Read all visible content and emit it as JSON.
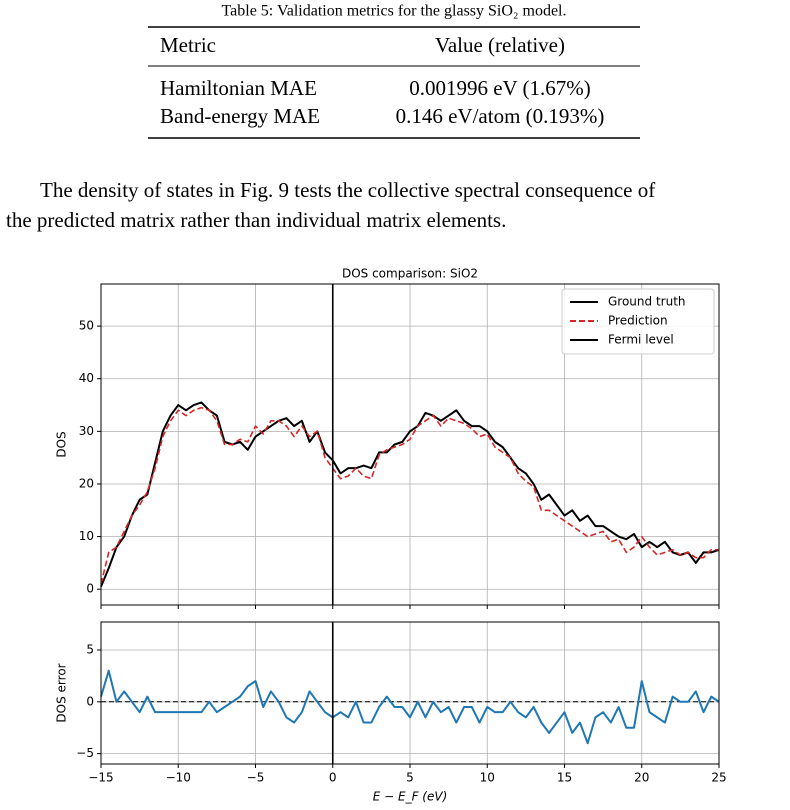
{
  "table": {
    "caption": "Table 5: Validation metrics for the glassy SiO₂ model.",
    "header": [
      "Metric",
      "Value (relative)"
    ],
    "rows": [
      [
        "Hamiltonian MAE",
        "0.001996 eV (1.67%)"
      ],
      [
        "Band-energy MAE",
        "0.146 eV/atom (0.193%)"
      ]
    ]
  },
  "paragraph": {
    "lines": [
      "The density of states in Fig. 9 tests the collective spectral consequence of",
      "the predicted matrix rather than individual matrix elements."
    ]
  },
  "chart_data": [
    {
      "type": "line",
      "title": "DOS comparison: SiO2",
      "ylabel": "DOS",
      "x": [
        -15,
        -14.5,
        -14,
        -13.5,
        -13,
        -12.5,
        -12,
        -11.5,
        -11,
        -10.5,
        -10,
        -9.5,
        -9,
        -8.5,
        -8,
        -7.5,
        -7,
        -6.5,
        -6,
        -5.5,
        -5,
        -4.5,
        -4,
        -3.5,
        -3,
        -2.5,
        -2,
        -1.5,
        -1,
        -0.5,
        0,
        0.5,
        1,
        1.5,
        2,
        2.5,
        3,
        3.5,
        4,
        4.5,
        5,
        5.5,
        6,
        6.5,
        7,
        7.5,
        8,
        8.5,
        9,
        9.5,
        10,
        10.5,
        11,
        11.5,
        12,
        12.5,
        13,
        13.5,
        14,
        14.5,
        15,
        15.5,
        16,
        16.5,
        17,
        17.5,
        18,
        18.5,
        19,
        19.5,
        20,
        20.5,
        21,
        21.5,
        22,
        22.5,
        23,
        23.5,
        24,
        24.5,
        25
      ],
      "series": [
        {
          "name": "Ground truth",
          "color": "#000000",
          "dash": false,
          "values": [
            0.5,
            4,
            8,
            10,
            14,
            17,
            18,
            24,
            30,
            33,
            35,
            34,
            35,
            35.5,
            34,
            33,
            28,
            27.5,
            28,
            26.5,
            29,
            30,
            31,
            32,
            32.5,
            31,
            32,
            28,
            30,
            26,
            24.5,
            22,
            23,
            23,
            23.5,
            23,
            26,
            26,
            27.5,
            28,
            30,
            31,
            33.5,
            33,
            32,
            33,
            34,
            32,
            31,
            31,
            30,
            28,
            27,
            25,
            23,
            22,
            20,
            17,
            18,
            16,
            14,
            15,
            13,
            14,
            12,
            12,
            11,
            10,
            9.5,
            10.5,
            8,
            9,
            8,
            9,
            7,
            6.5,
            7,
            5,
            7,
            7,
            7.5
          ]
        },
        {
          "name": "Prediction",
          "color": "#d62728",
          "dash": true,
          "values": [
            1,
            7,
            8,
            11,
            14,
            16,
            18.5,
            23,
            29,
            32,
            34,
            33,
            34,
            34.5,
            34,
            32,
            27.5,
            27.5,
            28.5,
            28,
            31,
            29.5,
            32,
            32,
            31,
            29,
            31,
            29,
            30,
            25,
            23,
            21,
            21.5,
            23,
            21.5,
            21,
            25.5,
            26.5,
            27,
            27.5,
            28.5,
            31,
            32,
            33,
            31,
            32.5,
            32,
            31.5,
            30.5,
            29,
            29.5,
            27,
            26,
            25,
            22,
            20.5,
            19.5,
            15,
            15,
            14,
            13,
            12,
            11,
            10,
            10.5,
            11,
            9,
            9.5,
            7,
            8,
            10,
            8,
            6.5,
            7,
            7.5,
            6.5,
            7,
            6,
            6,
            7.5,
            7.5
          ]
        }
      ],
      "vline": {
        "name": "Fermi level",
        "color": "#000000",
        "value": 0
      },
      "xlim": [
        -15,
        25
      ],
      "xticks": [
        -15,
        -10,
        -5,
        0,
        5,
        10,
        15,
        20,
        25
      ],
      "xtick_labels": false,
      "ylim": [
        -3,
        58
      ],
      "yticks": [
        0,
        10,
        20,
        30,
        40,
        50
      ],
      "grid": true,
      "legend": "upper-right"
    },
    {
      "type": "line",
      "ylabel": "DOS error",
      "xlabel": "E − E_F (eV)",
      "x": [
        -15,
        -14.5,
        -14,
        -13.5,
        -13,
        -12.5,
        -12,
        -11.5,
        -11,
        -10.5,
        -10,
        -9.5,
        -9,
        -8.5,
        -8,
        -7.5,
        -7,
        -6.5,
        -6,
        -5.5,
        -5,
        -4.5,
        -4,
        -3.5,
        -3,
        -2.5,
        -2,
        -1.5,
        -1,
        -0.5,
        0,
        0.5,
        1,
        1.5,
        2,
        2.5,
        3,
        3.5,
        4,
        4.5,
        5,
        5.5,
        6,
        6.5,
        7,
        7.5,
        8,
        8.5,
        9,
        9.5,
        10,
        10.5,
        11,
        11.5,
        12,
        12.5,
        13,
        13.5,
        14,
        14.5,
        15,
        15.5,
        16,
        16.5,
        17,
        17.5,
        18,
        18.5,
        19,
        19.5,
        20,
        20.5,
        21,
        21.5,
        22,
        22.5,
        23,
        23.5,
        24,
        24.5,
        25
      ],
      "series": [
        {
          "color": "#1f77b4",
          "dash": false,
          "values": [
            0.5,
            3,
            0,
            1,
            0,
            -1,
            0.5,
            -1,
            -1,
            -1,
            -1,
            -1,
            -1,
            -1,
            0,
            -1,
            -0.5,
            0,
            0.5,
            1.5,
            2,
            -0.5,
            1,
            0,
            -1.5,
            -2,
            -1,
            1,
            0,
            -1,
            -1.5,
            -1,
            -1.5,
            0,
            -2,
            -2,
            -0.5,
            0.5,
            -0.5,
            -0.5,
            -1.5,
            0,
            -1.5,
            0,
            -1,
            -0.5,
            -2,
            -0.5,
            -0.5,
            -2,
            -0.5,
            -1,
            -1,
            0,
            -1,
            -1.5,
            -0.5,
            -2,
            -3,
            -2,
            -1,
            -3,
            -2,
            -4,
            -1.5,
            -1,
            -2,
            -0.5,
            -2.5,
            -2.5,
            2,
            -1,
            -1.5,
            -2,
            0.5,
            0,
            0,
            1,
            -1,
            0.5,
            0
          ]
        }
      ],
      "vline": {
        "color": "#000000",
        "value": 0
      },
      "hline": {
        "color": "#000000",
        "value": 0
      },
      "xlim": [
        -15,
        25
      ],
      "xticks": [
        {
          "value": -15,
          "label": "−15"
        },
        {
          "value": -10,
          "label": "−10"
        },
        {
          "value": -5,
          "label": "−5"
        },
        0,
        5,
        10,
        15,
        20,
        25
      ],
      "xtick_labels": true,
      "ylim": [
        -6,
        7.7
      ],
      "yticks": [
        {
          "value": -5,
          "label": "−5"
        },
        0,
        5
      ],
      "grid": true
    }
  ]
}
